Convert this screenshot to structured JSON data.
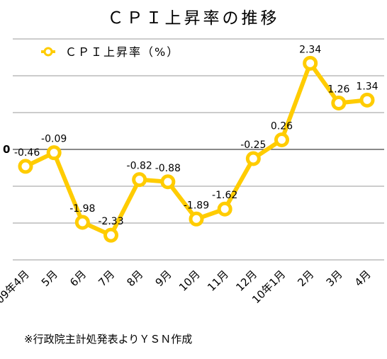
{
  "chart_data": {
    "type": "line",
    "title": "ＣＰＩ上昇率の推移",
    "categories": [
      "09年4月",
      "5月",
      "6月",
      "7月",
      "8月",
      "9月",
      "10月",
      "11月",
      "12月",
      "10年1月",
      "2月",
      "3月",
      "4月"
    ],
    "series": [
      {
        "name": "ＣＰＩ上昇率（%）",
        "values": [
          -0.46,
          -0.09,
          -1.98,
          -2.33,
          -0.82,
          -0.88,
          -1.89,
          -1.62,
          -0.25,
          0.26,
          2.34,
          1.26,
          1.34
        ],
        "labels": [
          "-0.46",
          "-0.09",
          "-1.98",
          "-2.33",
          "-0.82",
          "-0.88",
          "-1.89",
          "-1.62",
          "-0.25",
          "0.26",
          "2.34",
          "1.26",
          "1.34"
        ]
      }
    ],
    "ylim": [
      -3,
      3
    ],
    "grid": true,
    "y_tick_label": "0",
    "legend_position": "top-left",
    "line_color": "#FFCC00",
    "grid_color": "#9a9a9a"
  },
  "source_note": "※行政院主計処発表よりＹＳＮ作成"
}
